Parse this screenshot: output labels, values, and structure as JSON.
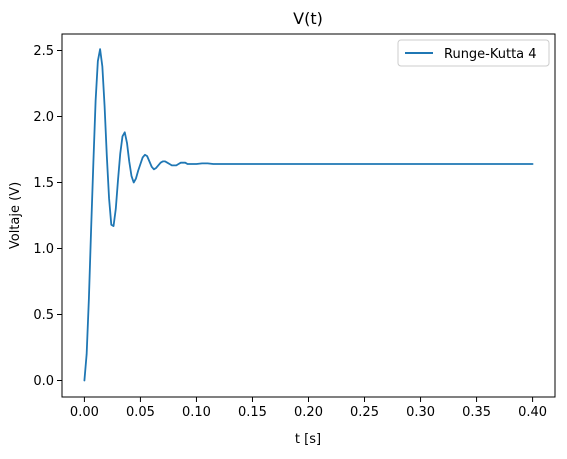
{
  "chart_data": {
    "type": "line",
    "title": "V(t)",
    "xlabel": "t [s]",
    "ylabel": "Voltaje (V)",
    "xlim": [
      -0.02,
      0.42
    ],
    "ylim": [
      -0.125,
      2.625
    ],
    "x_ticks": [
      0.0,
      0.05,
      0.1,
      0.15,
      0.2,
      0.25,
      0.3,
      0.35,
      0.4
    ],
    "x_tick_labels": [
      "0.00",
      "0.05",
      "0.10",
      "0.15",
      "0.20",
      "0.25",
      "0.30",
      "0.35",
      "0.40"
    ],
    "y_ticks": [
      0.0,
      0.5,
      1.0,
      1.5,
      2.0,
      2.5
    ],
    "y_tick_labels": [
      "0.0",
      "0.5",
      "1.0",
      "1.5",
      "2.0",
      "2.5"
    ],
    "grid": false,
    "legend_position": "top-right",
    "series": [
      {
        "name": "Runge-Kutta 4",
        "color": "#1f77b4",
        "x": [
          0.0,
          0.002,
          0.004,
          0.006,
          0.008,
          0.01,
          0.012,
          0.014,
          0.016,
          0.018,
          0.02,
          0.022,
          0.024,
          0.026,
          0.028,
          0.03,
          0.032,
          0.034,
          0.036,
          0.038,
          0.04,
          0.042,
          0.044,
          0.046,
          0.048,
          0.05,
          0.052,
          0.054,
          0.056,
          0.058,
          0.06,
          0.062,
          0.064,
          0.066,
          0.068,
          0.07,
          0.072,
          0.074,
          0.076,
          0.078,
          0.08,
          0.082,
          0.084,
          0.086,
          0.088,
          0.09,
          0.092,
          0.094,
          0.096,
          0.098,
          0.1,
          0.105,
          0.11,
          0.115,
          0.12,
          0.125,
          0.13,
          0.135,
          0.14,
          0.145,
          0.15,
          0.16,
          0.17,
          0.18,
          0.2,
          0.25,
          0.3,
          0.35,
          0.4
        ],
        "y": [
          0.0,
          0.2,
          0.62,
          1.15,
          1.65,
          2.12,
          2.42,
          2.51,
          2.38,
          2.08,
          1.7,
          1.38,
          1.18,
          1.17,
          1.3,
          1.52,
          1.72,
          1.85,
          1.88,
          1.8,
          1.66,
          1.55,
          1.5,
          1.53,
          1.59,
          1.64,
          1.69,
          1.71,
          1.7,
          1.66,
          1.62,
          1.6,
          1.61,
          1.63,
          1.65,
          1.66,
          1.66,
          1.65,
          1.64,
          1.63,
          1.63,
          1.63,
          1.64,
          1.65,
          1.65,
          1.65,
          1.64,
          1.64,
          1.64,
          1.64,
          1.64,
          1.645,
          1.645,
          1.64,
          1.64,
          1.64,
          1.64,
          1.64,
          1.64,
          1.64,
          1.64,
          1.64,
          1.64,
          1.64,
          1.64,
          1.64,
          1.64,
          1.64,
          1.64
        ]
      }
    ]
  }
}
